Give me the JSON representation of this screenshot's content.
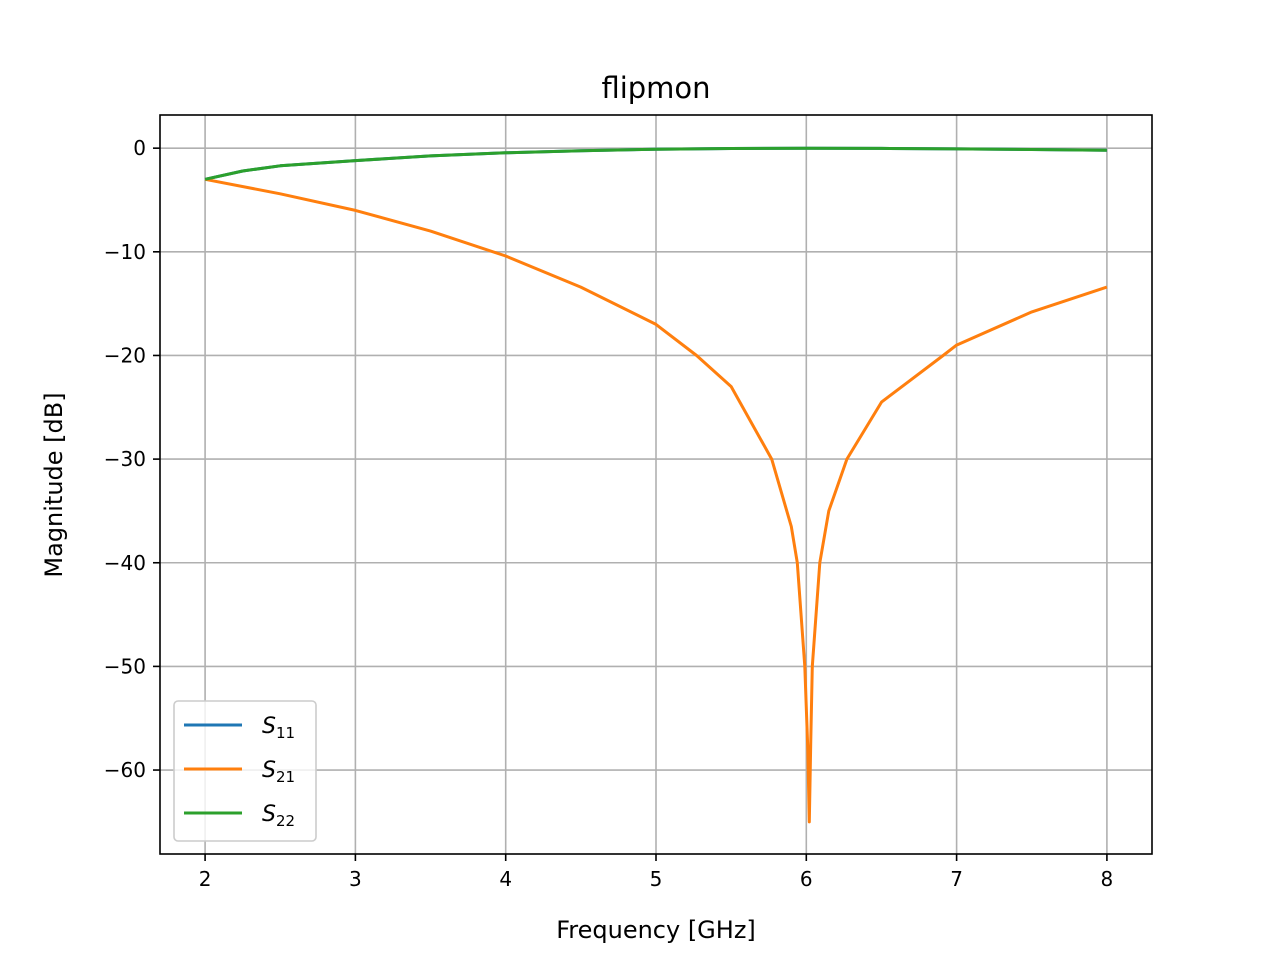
{
  "chart_data": {
    "type": "line",
    "title": "flipmon",
    "xlabel": "Frequency [GHz]",
    "ylabel": "Magnitude [dB]",
    "xlim": [
      1.7,
      8.3
    ],
    "ylim": [
      -68.1,
      3.2
    ],
    "xticks": [
      2,
      3,
      4,
      5,
      6,
      7,
      8
    ],
    "yticks": [
      0,
      -10,
      -20,
      -30,
      -40,
      -50,
      -60
    ],
    "xtick_labels": [
      "2",
      "3",
      "4",
      "5",
      "6",
      "7",
      "8"
    ],
    "ytick_labels": [
      "0",
      "−10",
      "−20",
      "−30",
      "−40",
      "−50",
      "−60"
    ],
    "grid": true,
    "legend_placement": "lower-left",
    "series": [
      {
        "name": "S11",
        "label_main": "S",
        "label_sub": "11",
        "color": "#1f77b4",
        "x": [
          2,
          2.25,
          2.5,
          3,
          3.5,
          4,
          4.5,
          5,
          5.5,
          6,
          6.5,
          7,
          7.5,
          8
        ],
        "y": [
          -3.0,
          -2.2,
          -1.7,
          -1.2,
          -0.75,
          -0.45,
          -0.25,
          -0.1,
          -0.03,
          0,
          -0.02,
          -0.07,
          -0.13,
          -0.2
        ]
      },
      {
        "name": "S21",
        "label_main": "S",
        "label_sub": "21",
        "color": "#ff7f0e",
        "x": [
          2,
          2.5,
          3,
          3.5,
          4,
          4.5,
          5,
          5.27,
          5.5,
          5.77,
          5.9,
          5.94,
          5.99,
          6.01,
          6.02,
          6.03,
          6.04,
          6.09,
          6.15,
          6.27,
          6.5,
          6.91,
          7,
          7.5,
          8
        ],
        "y": [
          -3.0,
          -4.4,
          -6.0,
          -8.0,
          -10.4,
          -13.4,
          -17.0,
          -20,
          -23,
          -30,
          -36.5,
          -40,
          -50,
          -58,
          -65,
          -57,
          -50,
          -40,
          -35,
          -30,
          -24.5,
          -20,
          -19,
          -15.8,
          -13.4
        ]
      },
      {
        "name": "S22",
        "label_main": "S",
        "label_sub": "22",
        "color": "#2ca02c",
        "x": [
          2,
          2.25,
          2.5,
          3,
          3.5,
          4,
          4.5,
          5,
          5.5,
          6,
          6.5,
          7,
          7.5,
          8
        ],
        "y": [
          -3.0,
          -2.2,
          -1.7,
          -1.2,
          -0.75,
          -0.45,
          -0.25,
          -0.1,
          -0.03,
          0,
          -0.02,
          -0.07,
          -0.13,
          -0.2
        ]
      }
    ]
  }
}
